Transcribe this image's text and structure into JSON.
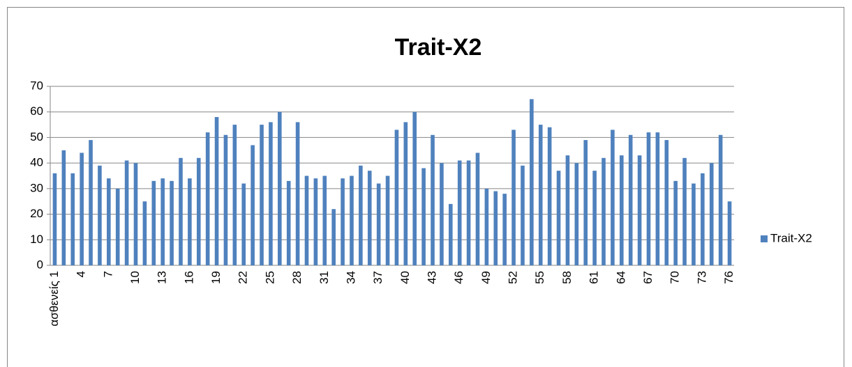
{
  "chart_data": {
    "type": "bar",
    "title": "Trait-X2",
    "categories": [
      "ασθενείς 1",
      null,
      null,
      "4",
      null,
      null,
      "7",
      null,
      null,
      "10",
      null,
      null,
      "13",
      null,
      null,
      "16",
      null,
      null,
      "19",
      null,
      null,
      "22",
      null,
      null,
      "25",
      null,
      null,
      "28",
      null,
      null,
      "31",
      null,
      null,
      "34",
      null,
      null,
      "37",
      null,
      null,
      "40",
      null,
      null,
      "43",
      null,
      null,
      "46",
      null,
      null,
      "49",
      null,
      null,
      "52",
      null,
      null,
      "55",
      null,
      null,
      "58",
      null,
      null,
      "61",
      null,
      null,
      "64",
      null,
      null,
      "67",
      null,
      null,
      "70",
      null,
      null,
      "73",
      null,
      null,
      "76"
    ],
    "series": [
      {
        "name": "Trait-X2",
        "color": "#4f81bd",
        "values": [
          36,
          45,
          36,
          44,
          49,
          39,
          34,
          30,
          41,
          40,
          25,
          33,
          34,
          33,
          42,
          34,
          42,
          52,
          58,
          51,
          55,
          32,
          47,
          55,
          56,
          60,
          33,
          56,
          35,
          34,
          35,
          22,
          34,
          35,
          39,
          37,
          32,
          35,
          53,
          56,
          60,
          38,
          51,
          40,
          24,
          41,
          41,
          44,
          30,
          29,
          28,
          53,
          39,
          65,
          55,
          54,
          37,
          43,
          40,
          49,
          37,
          42,
          53,
          43,
          51,
          43,
          52,
          52,
          49,
          33,
          42,
          32,
          36,
          40,
          51,
          25
        ]
      }
    ],
    "ylim": [
      0,
      70
    ],
    "yticks": [
      0,
      10,
      20,
      30,
      40,
      50,
      60,
      70
    ],
    "grid": true,
    "legend": "right"
  }
}
